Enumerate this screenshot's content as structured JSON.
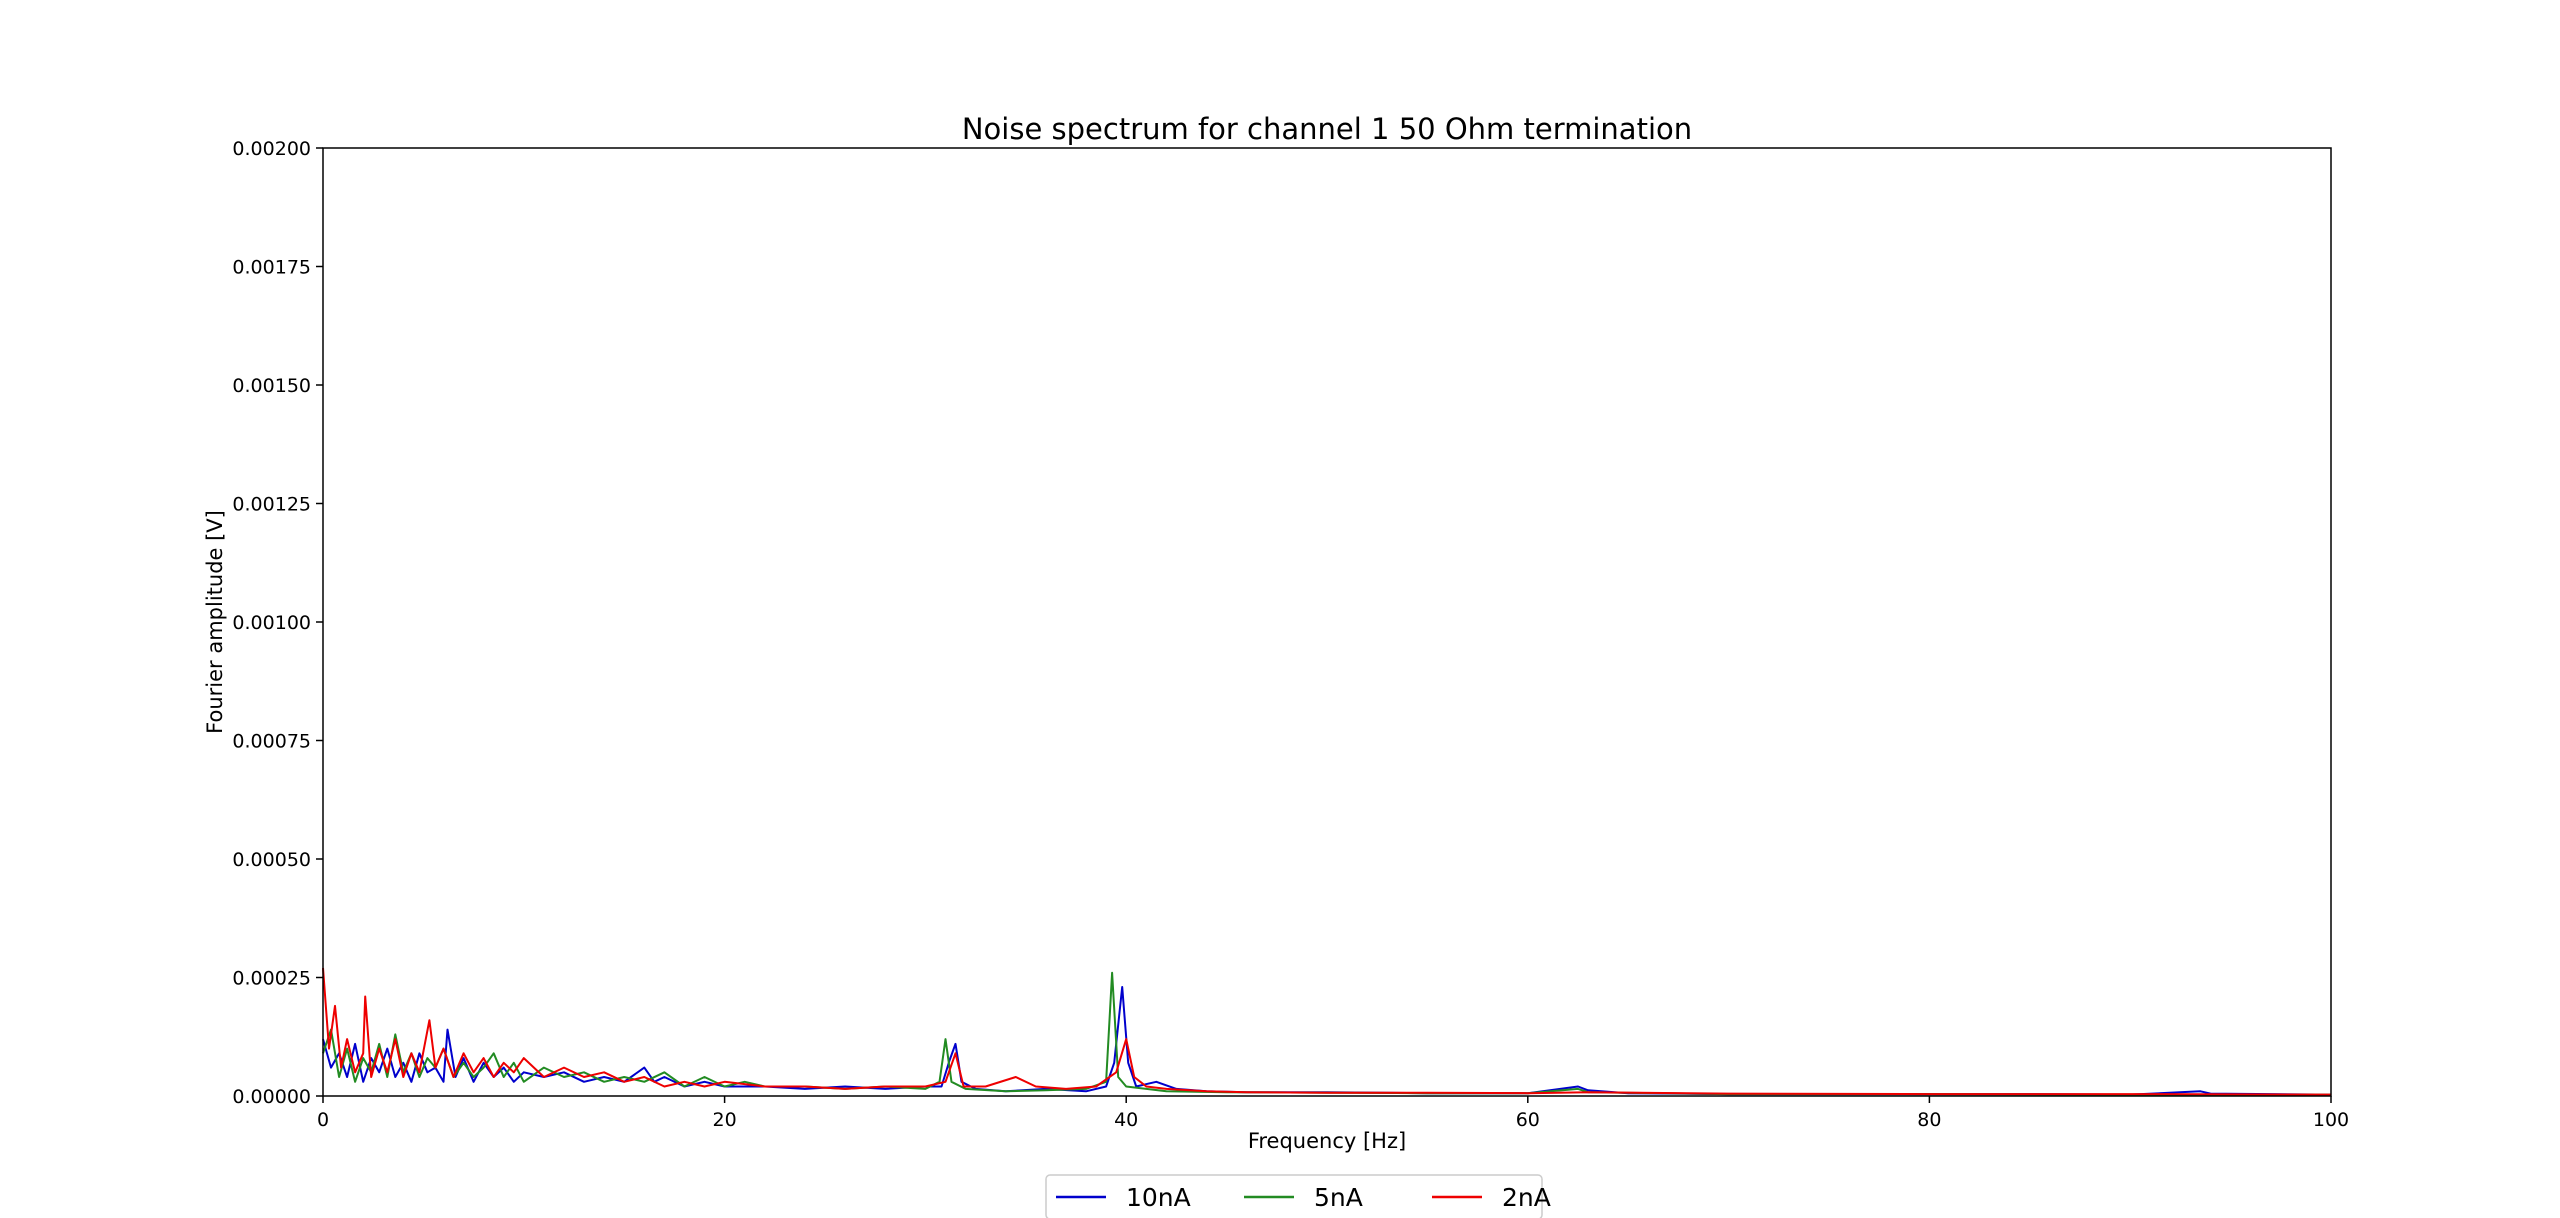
{
  "chart_data": {
    "type": "line",
    "title": "Noise spectrum for channel 1 50 Ohm termination",
    "xlabel": "Frequency [Hz]",
    "ylabel": "Fourier amplitude [V]",
    "xlim": [
      0,
      100
    ],
    "ylim": [
      0,
      0.002
    ],
    "xticks": [
      0,
      20,
      40,
      60,
      80,
      100
    ],
    "xtick_labels": [
      "0",
      "20",
      "40",
      "60",
      "80",
      "100"
    ],
    "yticks": [
      0,
      0.00025,
      0.0005,
      0.00075,
      0.001,
      0.00125,
      0.0015,
      0.00175,
      0.002
    ],
    "ytick_labels": [
      "0.00000",
      "0.00025",
      "0.00050",
      "0.00075",
      "0.00100",
      "0.00125",
      "0.00150",
      "0.00175",
      "0.00200"
    ],
    "grid": false,
    "legend_position": "bottom-center",
    "series": [
      {
        "name": "10nA",
        "color": "#0000cc",
        "points": [
          [
            0.0,
            0.00012
          ],
          [
            0.4,
            6e-05
          ],
          [
            0.8,
            9e-05
          ],
          [
            1.2,
            4e-05
          ],
          [
            1.6,
            0.00011
          ],
          [
            2.0,
            3e-05
          ],
          [
            2.4,
            8e-05
          ],
          [
            2.8,
            5e-05
          ],
          [
            3.2,
            0.0001
          ],
          [
            3.6,
            4e-05
          ],
          [
            4.0,
            7e-05
          ],
          [
            4.4,
            3e-05
          ],
          [
            4.8,
            9e-05
          ],
          [
            5.2,
            5e-05
          ],
          [
            5.6,
            6e-05
          ],
          [
            6.0,
            3e-05
          ],
          [
            6.2,
            0.00014
          ],
          [
            6.6,
            4e-05
          ],
          [
            7.0,
            8e-05
          ],
          [
            7.5,
            3e-05
          ],
          [
            8.0,
            7e-05
          ],
          [
            8.5,
            4e-05
          ],
          [
            9.0,
            6e-05
          ],
          [
            9.5,
            3e-05
          ],
          [
            10.0,
            5e-05
          ],
          [
            11.0,
            4e-05
          ],
          [
            12.0,
            5e-05
          ],
          [
            13.0,
            3e-05
          ],
          [
            14.0,
            4e-05
          ],
          [
            15.0,
            3e-05
          ],
          [
            16.0,
            6e-05
          ],
          [
            16.5,
            3e-05
          ],
          [
            17.0,
            4e-05
          ],
          [
            18.0,
            2e-05
          ],
          [
            19.0,
            3e-05
          ],
          [
            20.0,
            2e-05
          ],
          [
            22.0,
            2e-05
          ],
          [
            24.0,
            1.5e-05
          ],
          [
            26.0,
            2e-05
          ],
          [
            28.0,
            1.5e-05
          ],
          [
            30.0,
            2e-05
          ],
          [
            30.8,
            2e-05
          ],
          [
            31.2,
            7.5e-05
          ],
          [
            31.5,
            0.00011
          ],
          [
            31.8,
            3e-05
          ],
          [
            32.5,
            1.5e-05
          ],
          [
            34.0,
            1e-05
          ],
          [
            36.0,
            1.5e-05
          ],
          [
            38.0,
            1e-05
          ],
          [
            39.0,
            2e-05
          ],
          [
            39.4,
            7e-05
          ],
          [
            39.8,
            0.00023
          ],
          [
            40.1,
            7e-05
          ],
          [
            40.5,
            2e-05
          ],
          [
            41.5,
            3e-05
          ],
          [
            42.5,
            1.5e-05
          ],
          [
            44.0,
            1e-05
          ],
          [
            46.0,
            8e-06
          ],
          [
            50.0,
            8e-06
          ],
          [
            55.0,
            6e-06
          ],
          [
            60.0,
            6e-06
          ],
          [
            62.5,
            2e-05
          ],
          [
            63.0,
            1.2e-05
          ],
          [
            65.0,
            6e-06
          ],
          [
            70.0,
            4e-06
          ],
          [
            75.0,
            4e-06
          ],
          [
            80.0,
            4e-06
          ],
          [
            85.0,
            4e-06
          ],
          [
            90.0,
            3e-06
          ],
          [
            93.5,
            1e-05
          ],
          [
            94.0,
            5e-06
          ],
          [
            100.0,
            3e-06
          ]
        ]
      },
      {
        "name": "5nA",
        "color": "#228b22",
        "points": [
          [
            0.0,
            9e-05
          ],
          [
            0.4,
            0.00014
          ],
          [
            0.8,
            4e-05
          ],
          [
            1.2,
            0.0001
          ],
          [
            1.6,
            3e-05
          ],
          [
            2.0,
            8e-05
          ],
          [
            2.4,
            5e-05
          ],
          [
            2.8,
            0.00011
          ],
          [
            3.2,
            4e-05
          ],
          [
            3.6,
            0.00013
          ],
          [
            4.0,
            5e-05
          ],
          [
            4.4,
            9e-05
          ],
          [
            4.8,
            4e-05
          ],
          [
            5.2,
            8e-05
          ],
          [
            5.6,
            6e-05
          ],
          [
            6.0,
            0.0001
          ],
          [
            6.5,
            4e-05
          ],
          [
            7.0,
            7e-05
          ],
          [
            7.5,
            4e-05
          ],
          [
            8.0,
            6e-05
          ],
          [
            8.5,
            9e-05
          ],
          [
            9.0,
            4e-05
          ],
          [
            9.5,
            7e-05
          ],
          [
            10.0,
            3e-05
          ],
          [
            11.0,
            6e-05
          ],
          [
            12.0,
            4e-05
          ],
          [
            13.0,
            5e-05
          ],
          [
            14.0,
            3e-05
          ],
          [
            15.0,
            4e-05
          ],
          [
            16.0,
            3e-05
          ],
          [
            17.0,
            5e-05
          ],
          [
            18.0,
            2e-05
          ],
          [
            19.0,
            4e-05
          ],
          [
            20.0,
            2e-05
          ],
          [
            21.0,
            3e-05
          ],
          [
            22.0,
            2e-05
          ],
          [
            24.0,
            2e-05
          ],
          [
            26.0,
            1.5e-05
          ],
          [
            28.0,
            2e-05
          ],
          [
            30.0,
            1.5e-05
          ],
          [
            30.7,
            3e-05
          ],
          [
            31.0,
            0.00012
          ],
          [
            31.3,
            3e-05
          ],
          [
            32.0,
            1.5e-05
          ],
          [
            34.0,
            1e-05
          ],
          [
            36.0,
            1.2e-05
          ],
          [
            38.0,
            1.5e-05
          ],
          [
            39.0,
            3e-05
          ],
          [
            39.3,
            0.00026
          ],
          [
            39.6,
            4e-05
          ],
          [
            40.0,
            2e-05
          ],
          [
            41.0,
            1.5e-05
          ],
          [
            42.0,
            1e-05
          ],
          [
            45.0,
            8e-06
          ],
          [
            50.0,
            7e-06
          ],
          [
            55.0,
            6e-06
          ],
          [
            60.0,
            6e-06
          ],
          [
            62.5,
            1.5e-05
          ],
          [
            63.0,
            8e-06
          ],
          [
            70.0,
            4e-06
          ],
          [
            80.0,
            4e-06
          ],
          [
            90.0,
            3e-06
          ],
          [
            100.0,
            3e-06
          ]
        ]
      },
      {
        "name": "2nA",
        "color": "#ee0000",
        "points": [
          [
            0.0,
            0.00027
          ],
          [
            0.3,
            0.0001
          ],
          [
            0.6,
            0.00019
          ],
          [
            0.9,
            6e-05
          ],
          [
            1.2,
            0.00012
          ],
          [
            1.6,
            5e-05
          ],
          [
            2.0,
            9e-05
          ],
          [
            2.1,
            0.00021
          ],
          [
            2.4,
            4e-05
          ],
          [
            2.8,
            0.0001
          ],
          [
            3.2,
            5e-05
          ],
          [
            3.6,
            0.00012
          ],
          [
            4.0,
            4e-05
          ],
          [
            4.4,
            9e-05
          ],
          [
            4.8,
            5e-05
          ],
          [
            5.3,
            0.00016
          ],
          [
            5.6,
            6e-05
          ],
          [
            6.0,
            0.0001
          ],
          [
            6.5,
            4e-05
          ],
          [
            7.0,
            9e-05
          ],
          [
            7.5,
            5e-05
          ],
          [
            8.0,
            8e-05
          ],
          [
            8.5,
            4e-05
          ],
          [
            9.0,
            7e-05
          ],
          [
            9.5,
            5e-05
          ],
          [
            10.0,
            8e-05
          ],
          [
            11.0,
            4e-05
          ],
          [
            12.0,
            6e-05
          ],
          [
            13.0,
            4e-05
          ],
          [
            14.0,
            5e-05
          ],
          [
            15.0,
            3e-05
          ],
          [
            16.0,
            4e-05
          ],
          [
            17.0,
            2e-05
          ],
          [
            18.0,
            3e-05
          ],
          [
            19.0,
            2e-05
          ],
          [
            20.0,
            3e-05
          ],
          [
            22.0,
            2e-05
          ],
          [
            24.0,
            2e-05
          ],
          [
            26.0,
            1.5e-05
          ],
          [
            28.0,
            2e-05
          ],
          [
            30.0,
            2e-05
          ],
          [
            31.0,
            3e-05
          ],
          [
            31.5,
            9e-05
          ],
          [
            31.9,
            2e-05
          ],
          [
            33.0,
            2e-05
          ],
          [
            34.5,
            4e-05
          ],
          [
            35.5,
            2e-05
          ],
          [
            37.0,
            1.5e-05
          ],
          [
            38.5,
            2e-05
          ],
          [
            39.5,
            5e-05
          ],
          [
            40.0,
            0.00012
          ],
          [
            40.4,
            4e-05
          ],
          [
            41.0,
            2e-05
          ],
          [
            42.0,
            1.5e-05
          ],
          [
            44.0,
            1e-05
          ],
          [
            46.0,
            8e-06
          ],
          [
            50.0,
            7e-06
          ],
          [
            55.0,
            7e-06
          ],
          [
            60.0,
            6e-06
          ],
          [
            63.0,
            8e-06
          ],
          [
            70.0,
            5e-06
          ],
          [
            80.0,
            4e-06
          ],
          [
            90.0,
            4e-06
          ],
          [
            100.0,
            3e-06
          ]
        ]
      }
    ]
  }
}
